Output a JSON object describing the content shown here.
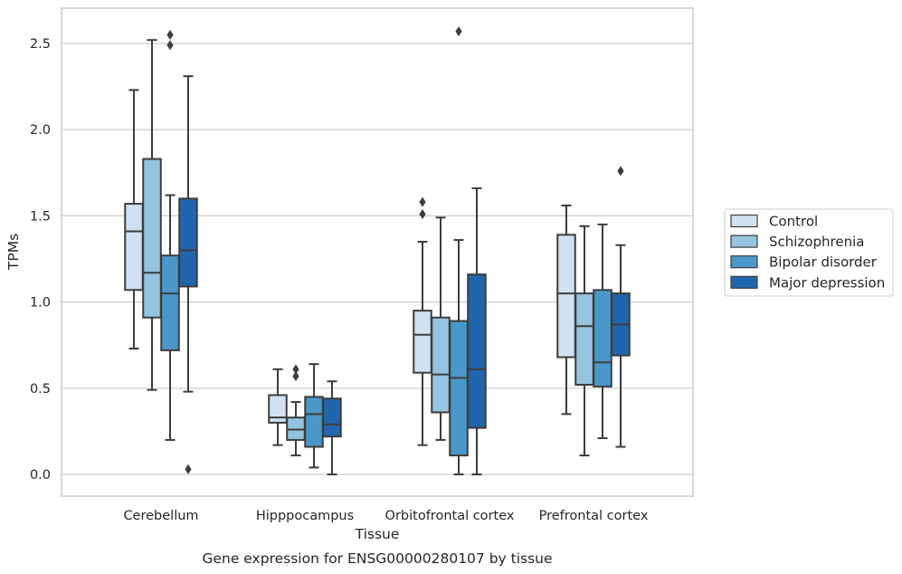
{
  "chart_data": {
    "type": "box",
    "title": "",
    "caption": "Gene expression for ENSG00000280107 by tissue",
    "xlabel": "Tissue",
    "ylabel": "TPMs",
    "ylim": [
      -0.12,
      2.72
    ],
    "yticks": [
      0.0,
      0.5,
      1.0,
      1.5,
      2.0,
      2.5
    ],
    "ytick_labels": [
      "0.0",
      "0.5",
      "1.0",
      "1.5",
      "2.0",
      "2.5"
    ],
    "grid": "horizontal",
    "legend_position": "right",
    "categories": [
      "Cerebellum",
      "Hipppocampus",
      "Orbitofrontal cortex",
      "Prefrontal cortex"
    ],
    "series": [
      {
        "name": "Control",
        "color": "#d0e1f2",
        "boxes": [
          {
            "whisker_low": 0.73,
            "q1": 1.07,
            "median": 1.41,
            "q3": 1.57,
            "whisker_high": 2.23,
            "outliers": []
          },
          {
            "whisker_low": 0.17,
            "q1": 0.3,
            "median": 0.33,
            "q3": 0.46,
            "whisker_high": 0.61,
            "outliers": []
          },
          {
            "whisker_low": 0.17,
            "q1": 0.59,
            "median": 0.81,
            "q3": 0.95,
            "whisker_high": 1.35,
            "outliers": [
              1.51,
              1.58
            ]
          },
          {
            "whisker_low": 0.35,
            "q1": 0.68,
            "median": 1.05,
            "q3": 1.39,
            "whisker_high": 1.56,
            "outliers": []
          }
        ]
      },
      {
        "name": "Schizophrenia",
        "color": "#94c4df",
        "boxes": [
          {
            "whisker_low": 0.49,
            "q1": 0.91,
            "median": 1.17,
            "q3": 1.83,
            "whisker_high": 2.52,
            "outliers": []
          },
          {
            "whisker_low": 0.11,
            "q1": 0.2,
            "median": 0.26,
            "q3": 0.33,
            "whisker_high": 0.42,
            "outliers": [
              0.57,
              0.61
            ]
          },
          {
            "whisker_low": 0.2,
            "q1": 0.36,
            "median": 0.58,
            "q3": 0.91,
            "whisker_high": 1.49,
            "outliers": []
          },
          {
            "whisker_low": 0.11,
            "q1": 0.52,
            "median": 0.86,
            "q3": 1.05,
            "whisker_high": 1.44,
            "outliers": []
          }
        ]
      },
      {
        "name": "Bipolar disorder",
        "color": "#4a98c9",
        "boxes": [
          {
            "whisker_low": 0.2,
            "q1": 0.72,
            "median": 1.05,
            "q3": 1.27,
            "whisker_high": 1.62,
            "outliers": [
              2.49,
              2.55
            ]
          },
          {
            "whisker_low": 0.04,
            "q1": 0.16,
            "median": 0.35,
            "q3": 0.45,
            "whisker_high": 0.64,
            "outliers": []
          },
          {
            "whisker_low": 0.0,
            "q1": 0.11,
            "median": 0.56,
            "q3": 0.89,
            "whisker_high": 1.36,
            "outliers": [
              2.57
            ]
          },
          {
            "whisker_low": 0.21,
            "q1": 0.51,
            "median": 0.65,
            "q3": 1.07,
            "whisker_high": 1.45,
            "outliers": []
          }
        ]
      },
      {
        "name": "Major depression",
        "color": "#2166ac",
        "boxes": [
          {
            "whisker_low": 0.48,
            "q1": 1.09,
            "median": 1.3,
            "q3": 1.6,
            "whisker_high": 2.31,
            "outliers": [
              0.03
            ]
          },
          {
            "whisker_low": 0.0,
            "q1": 0.22,
            "median": 0.29,
            "q3": 0.44,
            "whisker_high": 0.54,
            "outliers": []
          },
          {
            "whisker_low": 0.0,
            "q1": 0.27,
            "median": 0.61,
            "q3": 1.16,
            "whisker_high": 1.66,
            "outliers": []
          },
          {
            "whisker_low": 0.16,
            "q1": 0.69,
            "median": 0.87,
            "q3": 1.05,
            "whisker_high": 1.33,
            "outliers": [
              1.76
            ]
          }
        ]
      }
    ],
    "colors": {
      "grid": "#cccccc",
      "frame": "#cccccc",
      "box_edge": "#3d3d3d",
      "background": "#ffffff"
    }
  }
}
